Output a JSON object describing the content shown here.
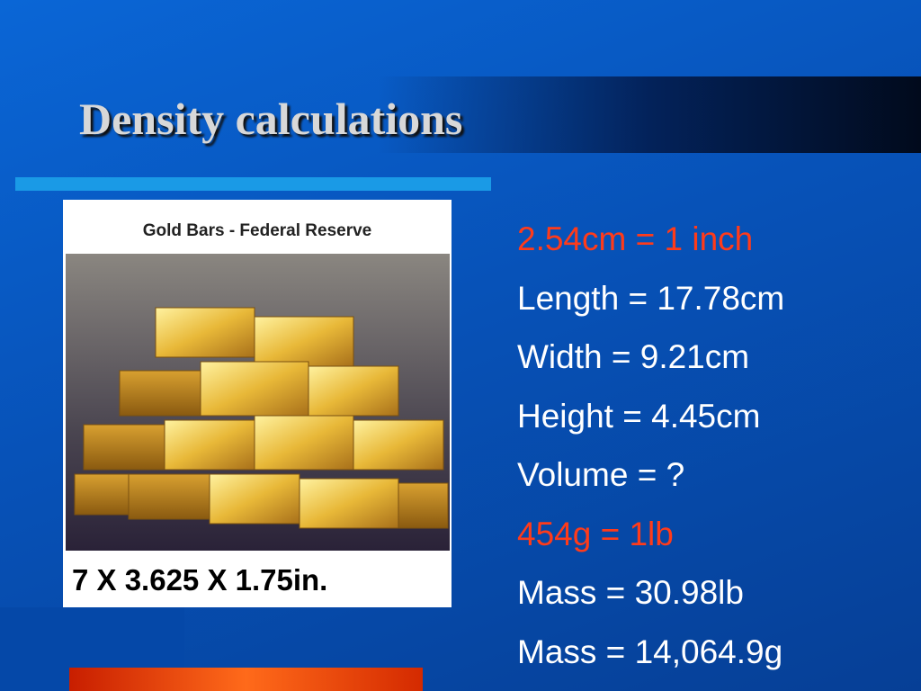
{
  "slide": {
    "title": "Density calculations",
    "image": {
      "caption": "Gold Bars - Federal Reserve",
      "dimensions": "7 X 3.625 X 1.75in."
    },
    "lines": [
      {
        "text": "2.54cm = 1 inch",
        "color": "#ff3b1a"
      },
      {
        "text": "Length = 17.78cm",
        "color": "#ffffff"
      },
      {
        "text": "Width = 9.21cm",
        "color": "#ffffff"
      },
      {
        "text": "Height = 4.45cm",
        "color": "#ffffff"
      },
      {
        "text": "Volume = ?",
        "color": "#ffffff"
      },
      {
        "text": "454g = 1lb",
        "color": "#ff3b1a"
      },
      {
        "text": "Mass = 30.98lb",
        "color": "#ffffff"
      },
      {
        "text": "Mass = 14,064.9g",
        "color": "#ffffff"
      }
    ]
  }
}
